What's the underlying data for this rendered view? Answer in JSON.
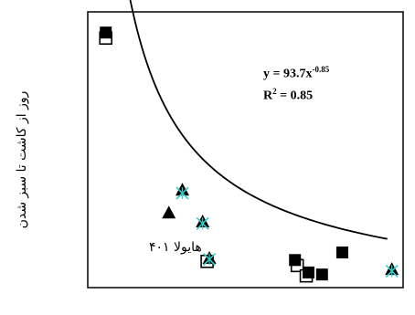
{
  "chart_data": {
    "type": "scatter",
    "ylabel": "روز از کاشت تا سبز شدن",
    "annotation_label": "هایولا ۴۰۱",
    "trendline": {
      "equation_lhs": "y = 93.7x",
      "equation_exp": "-0.85",
      "r2_text": "R",
      "r2_sup": "2",
      "r2_value": " = 0.85",
      "coefficient": 93.7,
      "exponent": -0.85,
      "r2": 0.85,
      "x_range": [
        1.8,
        13.8
      ]
    },
    "xlim": [
      0.5,
      14.5
    ],
    "ylim": [
      3,
      43
    ],
    "series": [
      {
        "marker": "filled-square",
        "points": [
          [
            1.3,
            40.0
          ],
          [
            9.7,
            7.0
          ],
          [
            10.3,
            5.2
          ],
          [
            10.9,
            4.9
          ],
          [
            11.8,
            8.1
          ]
        ]
      },
      {
        "marker": "open-square",
        "points": [
          [
            1.3,
            39.2
          ],
          [
            5.8,
            6.8
          ],
          [
            9.8,
            6.2
          ],
          [
            10.2,
            4.7
          ]
        ]
      },
      {
        "marker": "filled-triangle",
        "points": [
          [
            4.1,
            13.9
          ],
          [
            4.7,
            17.2
          ],
          [
            5.6,
            12.6
          ],
          [
            5.9,
            7.3
          ],
          [
            14.0,
            5.7
          ]
        ]
      },
      {
        "marker": "star",
        "points": [
          [
            4.7,
            16.7
          ],
          [
            5.6,
            12.3
          ],
          [
            5.9,
            7.1
          ],
          [
            14.0,
            5.4
          ]
        ]
      }
    ],
    "colors": {
      "ink": "#000000",
      "star": "#33cccc",
      "background": "#ffffff"
    }
  }
}
